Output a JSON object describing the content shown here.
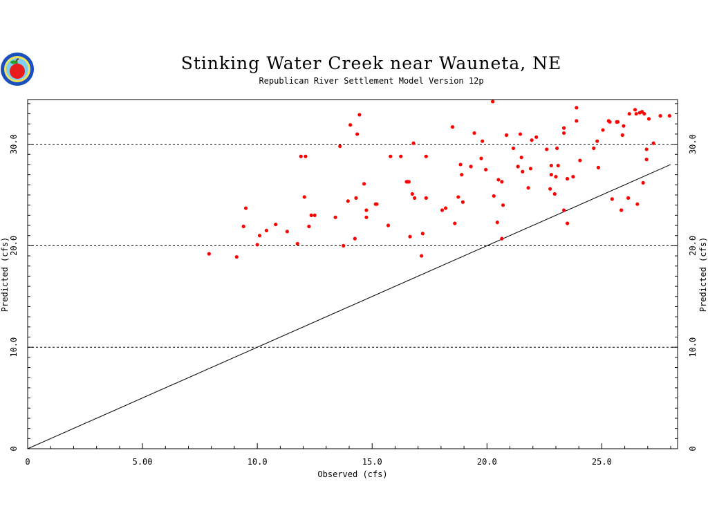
{
  "chart_data": {
    "type": "scatter",
    "title": "Stinking Water Creek near Wauneta, NE",
    "subtitle": "Republican River Settlement Model Version 12p",
    "xlabel": "Observed (cfs)",
    "ylabel": "Predicted (cfs)",
    "xlim": [
      0,
      28.3
    ],
    "ylim": [
      0,
      34.4
    ],
    "x_ticks": [
      "0",
      "5.00",
      "10.0",
      "15.0",
      "20.0",
      "25.0"
    ],
    "x_tick_values": [
      0,
      5,
      10,
      15,
      20,
      25
    ],
    "y_ticks": [
      "0",
      "10.0",
      "20.0",
      "30.0"
    ],
    "y_tick_values": [
      0,
      10,
      20,
      30
    ],
    "y_gridlines": [
      10,
      20,
      30
    ],
    "reference_line": {
      "x": [
        0,
        28
      ],
      "y": [
        0,
        28
      ]
    },
    "marker_color": "#ff0000",
    "points": [
      [
        7.9,
        19.2
      ],
      [
        9.1,
        18.9
      ],
      [
        9.4,
        21.9
      ],
      [
        9.5,
        23.7
      ],
      [
        10.0,
        20.1
      ],
      [
        10.1,
        21.0
      ],
      [
        10.4,
        21.5
      ],
      [
        10.8,
        22.1
      ],
      [
        11.3,
        21.4
      ],
      [
        11.75,
        20.2
      ],
      [
        11.9,
        28.8
      ],
      [
        12.05,
        24.8
      ],
      [
        12.1,
        28.8
      ],
      [
        12.25,
        21.9
      ],
      [
        12.35,
        23.0
      ],
      [
        12.5,
        23.0
      ],
      [
        13.4,
        22.8
      ],
      [
        13.6,
        29.8
      ],
      [
        13.75,
        20.0
      ],
      [
        13.95,
        24.4
      ],
      [
        14.05,
        31.9
      ],
      [
        14.25,
        20.7
      ],
      [
        14.3,
        24.7
      ],
      [
        14.35,
        31.0
      ],
      [
        14.45,
        32.9
      ],
      [
        14.65,
        26.1
      ],
      [
        14.75,
        23.5
      ],
      [
        14.75,
        22.8
      ],
      [
        15.15,
        24.1
      ],
      [
        15.2,
        24.1
      ],
      [
        15.7,
        22.0
      ],
      [
        15.8,
        28.8
      ],
      [
        16.25,
        28.8
      ],
      [
        16.5,
        26.3
      ],
      [
        16.55,
        26.3
      ],
      [
        16.6,
        26.3
      ],
      [
        16.65,
        20.9
      ],
      [
        16.75,
        25.1
      ],
      [
        16.8,
        30.1
      ],
      [
        16.85,
        24.7
      ],
      [
        17.15,
        19.0
      ],
      [
        17.2,
        21.2
      ],
      [
        17.35,
        28.8
      ],
      [
        17.35,
        24.7
      ],
      [
        18.05,
        23.5
      ],
      [
        18.2,
        23.7
      ],
      [
        18.5,
        31.7
      ],
      [
        18.6,
        22.2
      ],
      [
        18.75,
        24.8
      ],
      [
        18.85,
        28.0
      ],
      [
        18.9,
        27.0
      ],
      [
        18.95,
        24.3
      ],
      [
        19.3,
        27.8
      ],
      [
        19.45,
        31.1
      ],
      [
        19.8,
        30.3
      ],
      [
        19.75,
        28.6
      ],
      [
        19.95,
        27.5
      ],
      [
        20.25,
        34.2
      ],
      [
        20.3,
        24.9
      ],
      [
        20.45,
        22.3
      ],
      [
        20.5,
        26.5
      ],
      [
        20.65,
        26.3
      ],
      [
        20.65,
        20.7
      ],
      [
        20.7,
        24.0
      ],
      [
        20.85,
        30.9
      ],
      [
        21.15,
        29.6
      ],
      [
        21.35,
        27.8
      ],
      [
        21.45,
        31.0
      ],
      [
        21.5,
        28.7
      ],
      [
        21.55,
        27.3
      ],
      [
        21.8,
        25.7
      ],
      [
        21.9,
        27.6
      ],
      [
        21.95,
        30.4
      ],
      [
        22.15,
        30.7
      ],
      [
        22.6,
        29.5
      ],
      [
        22.75,
        25.6
      ],
      [
        22.8,
        27.9
      ],
      [
        22.8,
        27.0
      ],
      [
        22.95,
        25.1
      ],
      [
        23.0,
        26.8
      ],
      [
        23.05,
        29.6
      ],
      [
        23.1,
        27.9
      ],
      [
        23.35,
        31.6
      ],
      [
        23.35,
        31.1
      ],
      [
        23.35,
        23.5
      ],
      [
        23.5,
        22.2
      ],
      [
        23.5,
        26.6
      ],
      [
        23.75,
        26.8
      ],
      [
        23.9,
        33.6
      ],
      [
        23.9,
        32.3
      ],
      [
        24.05,
        28.4
      ],
      [
        24.65,
        29.6
      ],
      [
        24.8,
        30.3
      ],
      [
        24.85,
        27.7
      ],
      [
        25.05,
        31.4
      ],
      [
        25.3,
        32.3
      ],
      [
        25.35,
        32.2
      ],
      [
        25.45,
        24.6
      ],
      [
        25.65,
        32.2
      ],
      [
        25.7,
        32.2
      ],
      [
        25.85,
        23.5
      ],
      [
        25.9,
        30.9
      ],
      [
        25.95,
        31.8
      ],
      [
        26.15,
        24.7
      ],
      [
        26.2,
        33.0
      ],
      [
        26.45,
        33.4
      ],
      [
        26.5,
        33.0
      ],
      [
        26.55,
        24.1
      ],
      [
        26.65,
        33.1
      ],
      [
        26.75,
        33.2
      ],
      [
        26.8,
        26.2
      ],
      [
        26.85,
        33.0
      ],
      [
        26.95,
        28.5
      ],
      [
        26.95,
        29.5
      ],
      [
        27.05,
        32.5
      ],
      [
        27.25,
        30.1
      ],
      [
        27.55,
        32.8
      ],
      [
        27.95,
        32.8
      ]
    ]
  }
}
